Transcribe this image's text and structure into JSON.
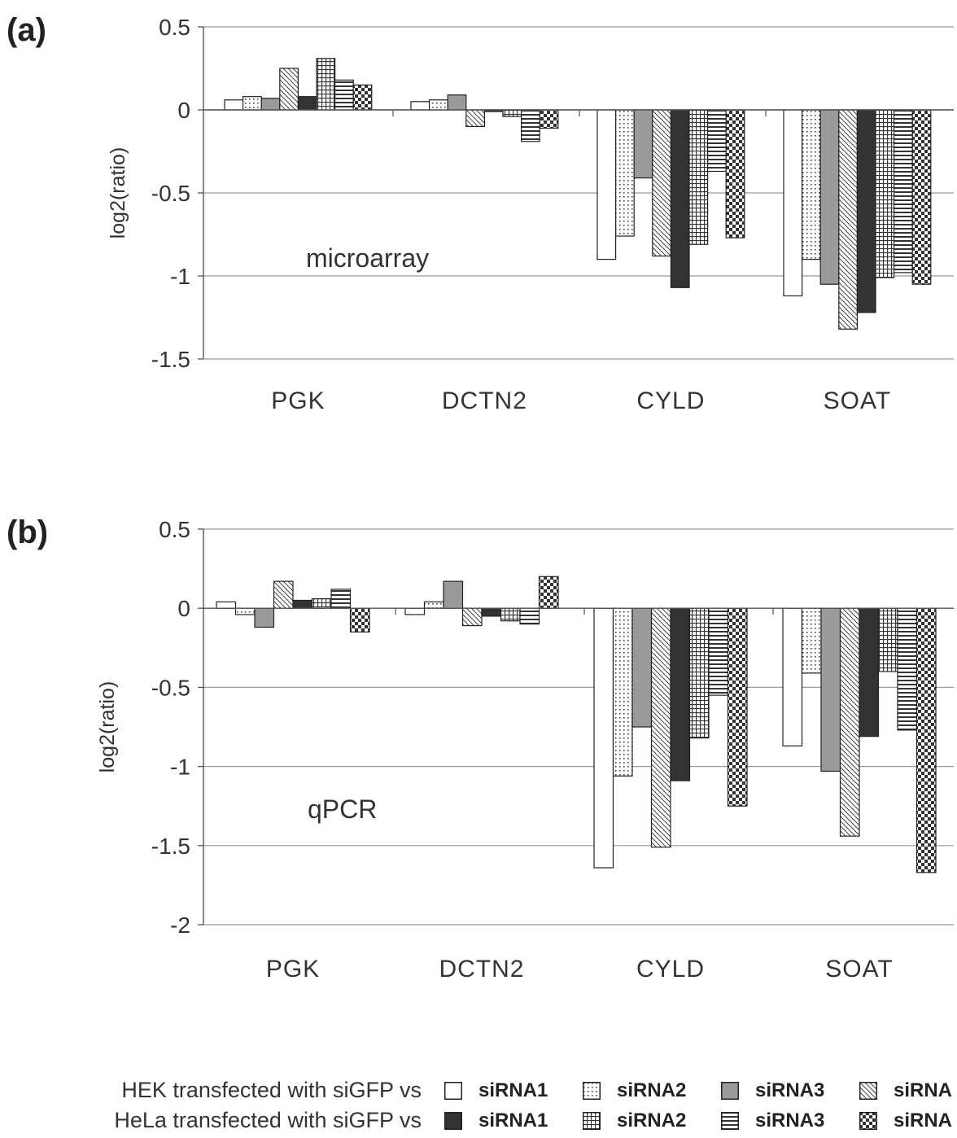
{
  "chart_data": [
    {
      "panel_label": "(a)",
      "type": "bar",
      "annotation": "microarray",
      "ylabel": "log2(ratio)",
      "ylim": [
        -1.5,
        0.5
      ],
      "yticks": [
        0.5,
        0,
        -0.5,
        -1,
        -1.5
      ],
      "ytick_labels": [
        "0.5",
        "0",
        "-0.5",
        "-1",
        "-1.5"
      ],
      "grid": true,
      "categories": [
        "PGK",
        "DCTN2",
        "CYLD",
        "SOAT"
      ],
      "series": [
        {
          "name": "HEK siRNA1",
          "pattern": "white",
          "values": [
            0.06,
            0.05,
            -0.9,
            -1.12
          ]
        },
        {
          "name": "HEK siRNA2",
          "pattern": "dots",
          "values": [
            0.08,
            0.06,
            -0.76,
            -0.9
          ]
        },
        {
          "name": "HEK siRNA3",
          "pattern": "gray",
          "values": [
            0.07,
            0.09,
            -0.41,
            -1.05
          ]
        },
        {
          "name": "HEK siRNA4",
          "pattern": "diagonal",
          "values": [
            0.25,
            -0.1,
            -0.88,
            -1.32
          ]
        },
        {
          "name": "HeLa siRNA1",
          "pattern": "dark",
          "values": [
            0.08,
            -0.01,
            -1.07,
            -1.22
          ]
        },
        {
          "name": "HeLa siRNA2",
          "pattern": "grid",
          "values": [
            0.31,
            -0.04,
            -0.81,
            -1.01
          ]
        },
        {
          "name": "HeLa siRNA3",
          "pattern": "horizontal",
          "values": [
            0.18,
            -0.19,
            -0.37,
            -0.98
          ]
        },
        {
          "name": "HeLa siRNA4",
          "pattern": "checker",
          "values": [
            0.15,
            -0.11,
            -0.77,
            -1.05
          ]
        }
      ]
    },
    {
      "panel_label": "(b)",
      "type": "bar",
      "annotation": "qPCR",
      "ylabel": "log2(ratio)",
      "ylim": [
        -2,
        0.5
      ],
      "yticks": [
        0.5,
        0,
        -0.5,
        -1,
        -1.5,
        -2
      ],
      "ytick_labels": [
        "0.5",
        "0",
        "-0.5",
        "-1",
        "-1.5",
        "-2"
      ],
      "grid": true,
      "categories": [
        "PGK",
        "DCTN2",
        "CYLD",
        "SOAT"
      ],
      "series": [
        {
          "name": "HEK siRNA1",
          "pattern": "white",
          "values": [
            0.04,
            -0.04,
            -1.64,
            -0.87
          ]
        },
        {
          "name": "HEK siRNA2",
          "pattern": "dots",
          "values": [
            -0.04,
            0.04,
            -1.06,
            -0.41
          ]
        },
        {
          "name": "HEK siRNA3",
          "pattern": "gray",
          "values": [
            -0.12,
            0.17,
            -0.75,
            -1.03
          ]
        },
        {
          "name": "HEK siRNA4",
          "pattern": "diagonal",
          "values": [
            0.17,
            -0.11,
            -1.51,
            -1.44
          ]
        },
        {
          "name": "HeLa siRNA1",
          "pattern": "dark",
          "values": [
            0.05,
            -0.05,
            -1.09,
            -0.81
          ]
        },
        {
          "name": "HeLa siRNA2",
          "pattern": "grid",
          "values": [
            0.06,
            -0.08,
            -0.82,
            -0.4
          ]
        },
        {
          "name": "HeLa siRNA3",
          "pattern": "horizontal",
          "values": [
            0.12,
            -0.1,
            -0.55,
            -0.77
          ]
        },
        {
          "name": "HeLa siRNA4",
          "pattern": "checker",
          "values": [
            -0.15,
            0.2,
            -1.25,
            -1.67
          ]
        }
      ]
    }
  ],
  "legend": {
    "rows": [
      {
        "label": "HEK transfected with siGFP vs",
        "items": [
          {
            "text": "siRNA1",
            "pattern": "white"
          },
          {
            "text": "siRNA2",
            "pattern": "dots"
          },
          {
            "text": "siRNA3",
            "pattern": "gray"
          },
          {
            "text": "siRNA",
            "pattern": "diagonal"
          }
        ]
      },
      {
        "label": "HeLa transfected with siGFP vs",
        "items": [
          {
            "text": "siRNA1",
            "pattern": "dark"
          },
          {
            "text": "siRNA2",
            "pattern": "grid"
          },
          {
            "text": "siRNA3",
            "pattern": "horizontal"
          },
          {
            "text": "siRNA",
            "pattern": "checker"
          }
        ]
      }
    ]
  }
}
